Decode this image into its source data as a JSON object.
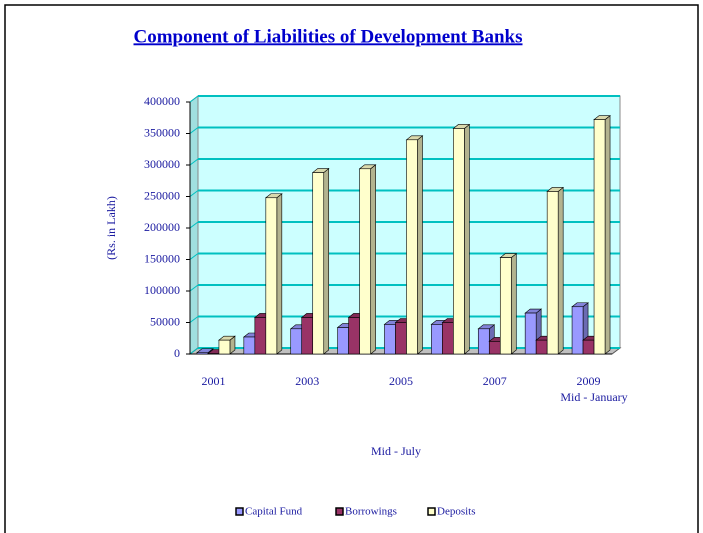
{
  "chart_data": {
    "type": "bar3d",
    "title": "Component of Liabilities of Development Banks",
    "y_label": "(Rs. in Lakh)",
    "x_label": "Mid - July",
    "annotation": "Mid - January",
    "categories": [
      "2001",
      null,
      "2003",
      null,
      "2005",
      null,
      "2007",
      null,
      "2009"
    ],
    "series": [
      {
        "name": "Capital Fund",
        "color": "#9999ff",
        "values": [
          2000,
          27000,
          40000,
          42000,
          47000,
          47000,
          40000,
          65000,
          75000
        ]
      },
      {
        "name": "Borrowings",
        "color": "#993366",
        "values": [
          500,
          58000,
          58000,
          58000,
          50000,
          50000,
          20000,
          22000,
          22000
        ]
      },
      {
        "name": "Deposits",
        "color": "#ffffcc",
        "values": [
          22000,
          248000,
          288000,
          294000,
          340000,
          358000,
          153000,
          258000,
          372000
        ]
      }
    ],
    "ylim": [
      0,
      400000
    ],
    "yticks": [
      0,
      50000,
      100000,
      150000,
      200000,
      250000,
      300000,
      350000,
      400000
    ],
    "grid": true,
    "wall_color": "#ccffff",
    "grid_color": "#00c0c0",
    "legend": "bottom"
  }
}
